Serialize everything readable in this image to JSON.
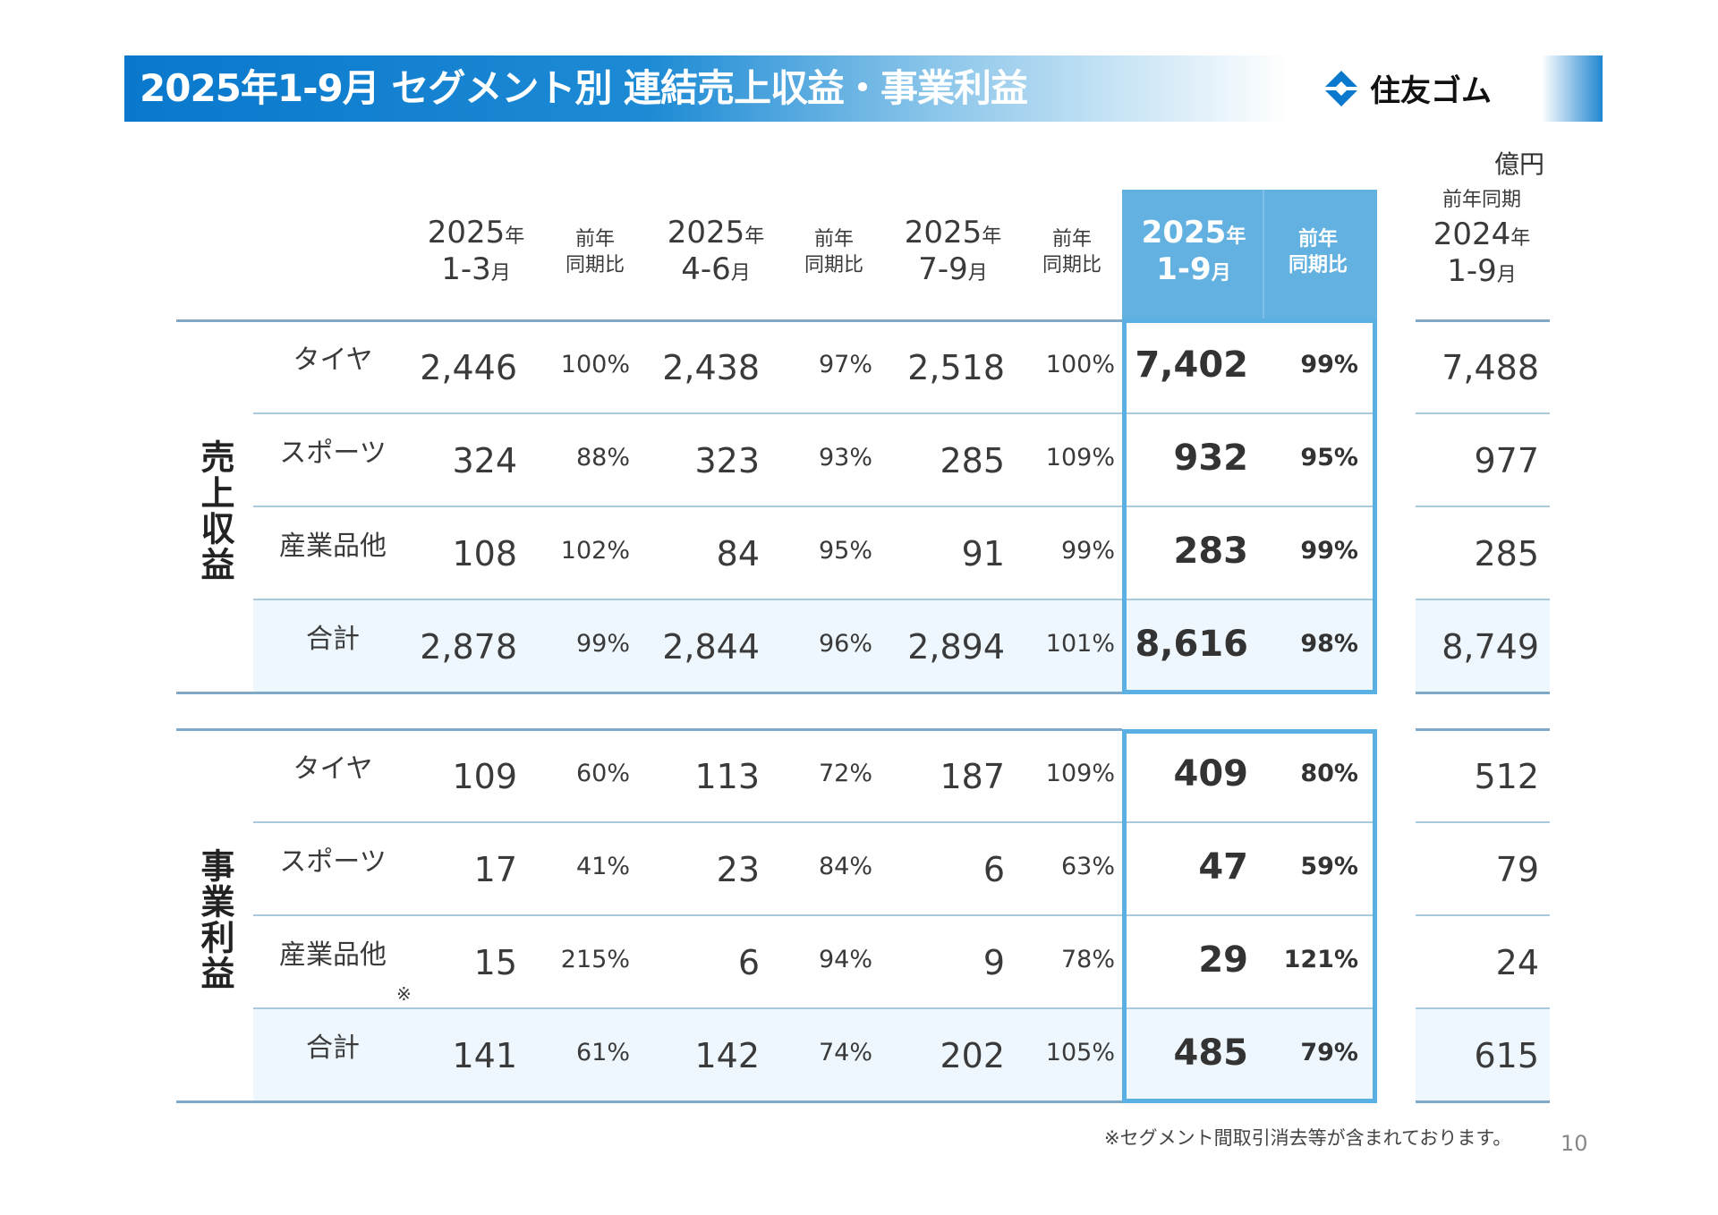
{
  "title": "2025年1-9月 セグメント別 連結売上収益・事業利益",
  "logo": {
    "text": "住友ゴム",
    "icon": "sumitomo-diamond-logo-icon",
    "color": "#0a78cc"
  },
  "unit": "億円",
  "colors": {
    "header_band": "#0a78cc",
    "highlight": "#63b1e0",
    "highlight_border": "#5aafe3",
    "total_row_bg": "#eef7fd"
  },
  "headers": {
    "q1": {
      "year": "2025",
      "year_suffix": "年",
      "period": "1-3",
      "period_suffix": "月"
    },
    "q1p": [
      "前年",
      "同期比"
    ],
    "q2": {
      "year": "2025",
      "year_suffix": "年",
      "period": "4-6",
      "period_suffix": "月"
    },
    "q2p": [
      "前年",
      "同期比"
    ],
    "q3": {
      "year": "2025",
      "year_suffix": "年",
      "period": "7-9",
      "period_suffix": "月"
    },
    "q3p": [
      "前年",
      "同期比"
    ],
    "cum": {
      "year": "2025",
      "year_suffix": "年",
      "period": "1-9",
      "period_suffix": "月"
    },
    "cump": [
      "前年",
      "同期比"
    ],
    "prior": {
      "caption": "前年同期",
      "year": "2024",
      "year_suffix": "年",
      "period": "1-9",
      "period_suffix": "月"
    }
  },
  "sections": [
    {
      "label": "売上収益",
      "rows": [
        {
          "label": "タイヤ",
          "q1": "2,446",
          "q1p": "100%",
          "q2": "2,438",
          "q2p": "97%",
          "q3": "2,518",
          "q3p": "100%",
          "cum": "7,402",
          "cump": "99%",
          "prior": "7,488"
        },
        {
          "label": "スポーツ",
          "q1": "324",
          "q1p": "88%",
          "q2": "323",
          "q2p": "93%",
          "q3": "285",
          "q3p": "109%",
          "cum": "932",
          "cump": "95%",
          "prior": "977"
        },
        {
          "label": "産業品他",
          "q1": "108",
          "q1p": "102%",
          "q2": "84",
          "q2p": "95%",
          "q3": "91",
          "q3p": "99%",
          "cum": "283",
          "cump": "99%",
          "prior": "285"
        },
        {
          "label": "合計",
          "q1": "2,878",
          "q1p": "99%",
          "q2": "2,844",
          "q2p": "96%",
          "q3": "2,894",
          "q3p": "101%",
          "cum": "8,616",
          "cump": "98%",
          "prior": "8,749"
        }
      ]
    },
    {
      "label": "事業利益",
      "rows": [
        {
          "label": "タイヤ",
          "q1": "109",
          "q1p": "60%",
          "q2": "113",
          "q2p": "72%",
          "q3": "187",
          "q3p": "109%",
          "cum": "409",
          "cump": "80%",
          "prior": "512"
        },
        {
          "label": "スポーツ",
          "q1": "17",
          "q1p": "41%",
          "q2": "23",
          "q2p": "84%",
          "q3": "6",
          "q3p": "63%",
          "cum": "47",
          "cump": "59%",
          "prior": "79"
        },
        {
          "label": "産業品他",
          "mark": "※",
          "q1": "15",
          "q1p": "215%",
          "q2": "6",
          "q2p": "94%",
          "q3": "9",
          "q3p": "78%",
          "cum": "29",
          "cump": "121%",
          "prior": "24"
        },
        {
          "label": "合計",
          "q1": "141",
          "q1p": "61%",
          "q2": "142",
          "q2p": "74%",
          "q3": "202",
          "q3p": "105%",
          "cum": "485",
          "cump": "79%",
          "prior": "615"
        }
      ]
    }
  ],
  "footnote": "※セグメント間取引消去等が含まれております。",
  "page_number": "10"
}
